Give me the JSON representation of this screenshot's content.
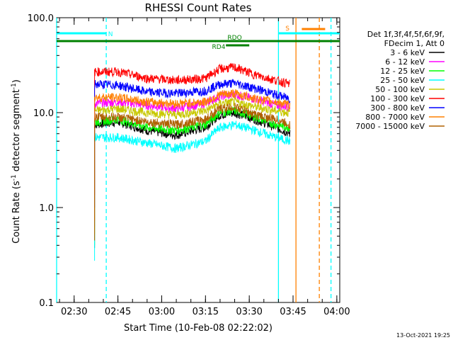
{
  "chart_data": {
    "type": "line",
    "title": "RHESSI Count Rates",
    "xlabel": "Start Time (10-Feb-08 02:22:02)",
    "ylabel": "Count Rate (s",
    "ylabel_sup": "-1",
    "ylabel_tail": " detector segment",
    "ylabel_sup2": "-1",
    "ylabel_close": ")",
    "yscale": "log",
    "ylim": [
      0.1,
      100.0
    ],
    "xlim_minutes": [
      144,
      241
    ],
    "x_ticks": [
      {
        "label": "02:30",
        "minute": 150
      },
      {
        "label": "02:45",
        "minute": 165
      },
      {
        "label": "03:00",
        "minute": 180
      },
      {
        "label": "03:15",
        "minute": 195
      },
      {
        "label": "03:30",
        "minute": 210
      },
      {
        "label": "03:45",
        "minute": 225
      },
      {
        "label": "04:00",
        "minute": 240
      }
    ],
    "y_ticks": [
      {
        "label": "0.1",
        "value": 0.1
      },
      {
        "label": "1.0",
        "value": 1.0
      },
      {
        "label": "10.0",
        "value": 10.0
      },
      {
        "label": "100.0",
        "value": 100.0
      }
    ],
    "legend_header": [
      "Det 1f,3f,4f,5f,6f,9f,",
      "FDecim 1, Att 0"
    ],
    "legend_position": "right",
    "series": [
      {
        "name": "3 - 6 keV",
        "color": "#000000",
        "x": [
          157,
          165,
          175,
          185,
          195,
          200,
          205,
          212,
          219,
          224
        ],
        "y": [
          7.5,
          8.0,
          6.5,
          5.8,
          7.0,
          9.5,
          10.0,
          8.5,
          7.0,
          6.0
        ]
      },
      {
        "name": "6 - 12 keV",
        "color": "#ff00ff",
        "x": [
          157,
          165,
          175,
          185,
          195,
          200,
          205,
          212,
          219,
          224
        ],
        "y": [
          12.5,
          13.0,
          12.0,
          11.0,
          12.5,
          15.0,
          15.5,
          14.0,
          12.0,
          11.5
        ]
      },
      {
        "name": "12 - 25 keV",
        "color": "#00ff00",
        "x": [
          157,
          165,
          175,
          185,
          195,
          200,
          205,
          212,
          219,
          224
        ],
        "y": [
          8.0,
          8.5,
          7.0,
          6.5,
          7.5,
          10.0,
          10.5,
          9.0,
          7.5,
          7.0
        ]
      },
      {
        "name": "25 - 50 keV",
        "color": "#00ffff",
        "x": [
          157,
          165,
          175,
          185,
          195,
          200,
          205,
          212,
          219,
          224
        ],
        "y": [
          5.5,
          5.5,
          4.8,
          4.2,
          5.0,
          7.0,
          7.5,
          6.5,
          5.5,
          5.0
        ]
      },
      {
        "name": "50 - 100 keV",
        "color": "#c8c800",
        "x": [
          157,
          165,
          175,
          185,
          195,
          200,
          205,
          212,
          219,
          224
        ],
        "y": [
          10.5,
          11.0,
          10.0,
          9.5,
          10.5,
          12.5,
          13.0,
          11.5,
          10.5,
          10.0
        ]
      },
      {
        "name": "100 - 300 keV",
        "color": "#ff0000",
        "x": [
          157,
          165,
          175,
          185,
          195,
          200,
          205,
          212,
          219,
          224
        ],
        "y": [
          27.0,
          27.0,
          23.0,
          22.0,
          23.0,
          29.0,
          30.0,
          25.0,
          22.0,
          20.0
        ]
      },
      {
        "name": "300 - 800 keV",
        "color": "#0000ff",
        "x": [
          157,
          165,
          175,
          185,
          195,
          200,
          205,
          212,
          219,
          224
        ],
        "y": [
          20.0,
          19.5,
          16.5,
          16.0,
          17.0,
          20.0,
          20.5,
          18.0,
          15.5,
          14.0
        ]
      },
      {
        "name": "800 - 7000 keV",
        "color": "#ff8000",
        "x": [
          157,
          165,
          175,
          185,
          195,
          200,
          205,
          212,
          219,
          224
        ],
        "y": [
          14.5,
          14.5,
          13.0,
          12.5,
          13.0,
          15.5,
          16.0,
          14.0,
          13.0,
          12.0
        ]
      },
      {
        "name": "7000 - 15000 keV",
        "color": "#b06000",
        "x": [
          157,
          165,
          175,
          185,
          195,
          200,
          205,
          212,
          219,
          224
        ],
        "y": [
          9.0,
          9.0,
          8.0,
          7.5,
          8.5,
          11.0,
          11.5,
          9.5,
          8.5,
          7.5
        ]
      }
    ],
    "flag_bars": [
      {
        "label": "N",
        "color": "#00ffff",
        "segments": [
          [
            144,
            161
          ],
          [
            220,
            241
          ]
        ]
      },
      {
        "label": "S",
        "color": "#ff8000",
        "segments": [
          [
            228,
            236
          ]
        ]
      },
      {
        "label": "RDO",
        "color": "#008000",
        "segments": [
          [
            144,
            241
          ]
        ]
      },
      {
        "label": "RD4",
        "color": "#008000",
        "segments": [
          [
            202,
            210
          ]
        ]
      }
    ],
    "vertical_markers": [
      {
        "minute": 144,
        "color": "#00ffff",
        "style": "solid"
      },
      {
        "minute": 161,
        "color": "#00ffff",
        "style": "dashed"
      },
      {
        "minute": 220,
        "color": "#00ffff",
        "style": "solid"
      },
      {
        "minute": 226,
        "color": "#ff8000",
        "style": "solid"
      },
      {
        "minute": 234,
        "color": "#ff8000",
        "style": "dashed"
      },
      {
        "minute": 238,
        "color": "#00ffff",
        "style": "dashed"
      }
    ]
  },
  "footer": {
    "timestamp": "13-Oct-2021 19:25"
  }
}
